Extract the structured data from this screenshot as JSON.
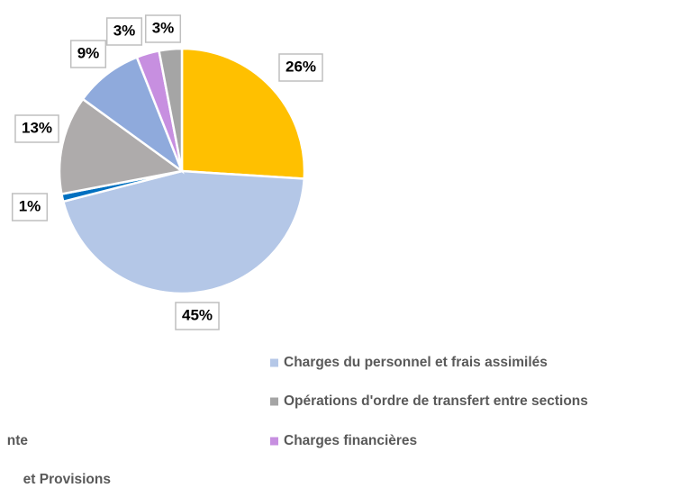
{
  "chart_data": {
    "type": "pie",
    "categories": [
      null,
      "Charges du personnel et frais assimilés",
      null,
      null,
      null,
      "Charges financières",
      "Opérations d'ordre de transfert entre sections"
    ],
    "values": [
      26,
      45,
      1,
      13,
      9,
      3,
      3
    ],
    "value_labels": [
      "26%",
      "45%",
      "1%",
      "13%",
      "9%",
      "3%",
      "3%"
    ],
    "colors": [
      "#FFC000",
      "#B4C7E7",
      "#0070C0",
      "#AEABAB",
      "#8FAADC",
      "#C78FE0",
      "#A5A5A5"
    ],
    "legend_partial": [
      "nte",
      "et Provisions"
    ]
  }
}
